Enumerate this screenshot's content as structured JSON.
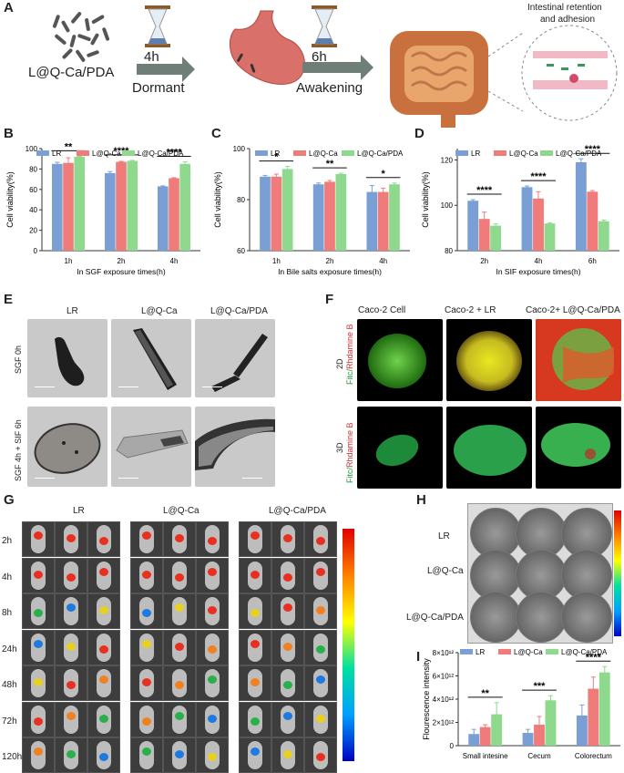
{
  "panels": {
    "A": {
      "letter": "A",
      "bacteria_label": "L@Q-Ca/PDA",
      "step1_time": "4h",
      "step1_label": "Dormant",
      "step2_time": "6h",
      "step2_label": "Awakening",
      "inset_title_line1": "Intestinal retention",
      "inset_title_line2": "and adhesion"
    },
    "B": {
      "letter": "B"
    },
    "C": {
      "letter": "C"
    },
    "D": {
      "letter": "D"
    },
    "E": {
      "letter": "E",
      "col_labels": [
        "LR",
        "L@Q-Ca",
        "L@Q-Ca/PDA"
      ],
      "row_labels": [
        "SGF 0h",
        "SGF 4h + SIF 6h"
      ]
    },
    "F": {
      "letter": "F",
      "col_labels": [
        "Caco-2 Cell",
        "Caco-2 + LR",
        "Caco-2+ L@Q-Ca/PDA"
      ],
      "row_labels": [
        "2D",
        "3D"
      ],
      "side_label_green": "Fitc/",
      "side_label_red": "Rhdamine B"
    },
    "G": {
      "letter": "G",
      "group_labels": [
        "LR",
        "L@Q-Ca",
        "L@Q-Ca/PDA"
      ],
      "time_labels": [
        "2h",
        "4h",
        "8h",
        "24h",
        "48h",
        "72h",
        "120h"
      ]
    },
    "H": {
      "letter": "H",
      "row_labels": [
        "LR",
        "L@Q-Ca",
        "L@Q-Ca/PDA"
      ]
    },
    "I": {
      "letter": "I"
    }
  },
  "colors": {
    "LR": "#7a9fd4",
    "LQCa": "#f07b7b",
    "LQCaPDA": "#8fd98f"
  },
  "chart_data": [
    {
      "id": "B",
      "type": "bar",
      "categories": [
        "1h",
        "2h",
        "4h"
      ],
      "series": [
        {
          "name": "LR",
          "values": [
            85,
            76,
            63
          ]
        },
        {
          "name": "L@Q-Ca",
          "values": [
            86,
            87,
            71
          ]
        },
        {
          "name": "L@Q-Ca/PDA",
          "values": [
            92,
            88,
            85
          ]
        }
      ],
      "errors": [
        [
          1.5,
          1.5,
          0.5
        ],
        [
          5,
          0.5,
          0.5
        ],
        [
          0.5,
          0.5,
          2
        ]
      ],
      "xlabel": "In SGF exposure times(h)",
      "ylabel": "Cell viability(%)",
      "ylim": [
        0,
        100
      ],
      "yticks": [
        0,
        20,
        40,
        60,
        80,
        100
      ],
      "significance": [
        "**",
        "****",
        "****"
      ]
    },
    {
      "id": "C",
      "type": "bar",
      "categories": [
        "1h",
        "2h",
        "4h"
      ],
      "series": [
        {
          "name": "LR",
          "values": [
            89,
            86,
            83
          ]
        },
        {
          "name": "L@Q-Ca",
          "values": [
            89,
            87,
            83
          ]
        },
        {
          "name": "L@Q-Ca/PDA",
          "values": [
            92,
            90,
            86
          ]
        }
      ],
      "errors": [
        [
          0.5,
          0.5,
          2.5
        ],
        [
          1,
          0.5,
          1.5
        ],
        [
          1,
          0.3,
          0.5
        ]
      ],
      "xlabel": "In Bile salts exposure times(h)",
      "ylabel": "Cell viability(%)",
      "ylim": [
        60,
        100
      ],
      "yticks": [
        60,
        80,
        100
      ],
      "significance": [
        "*",
        "**",
        "*"
      ]
    },
    {
      "id": "D",
      "type": "bar",
      "categories": [
        "2h",
        "4h",
        "6h"
      ],
      "series": [
        {
          "name": "LR",
          "values": [
            102,
            108,
            119
          ]
        },
        {
          "name": "L@Q-Ca",
          "values": [
            94,
            103,
            106
          ]
        },
        {
          "name": "L@Q-Ca/PDA",
          "values": [
            91,
            92,
            93
          ]
        }
      ],
      "errors": [
        [
          0.5,
          0.5,
          1.5
        ],
        [
          3,
          3,
          0.5
        ],
        [
          0.8,
          0.3,
          0.5
        ]
      ],
      "xlabel": "In SIF exposure times(h)",
      "ylabel": "Cell viability(%)",
      "ylim": [
        80,
        125
      ],
      "yticks": [
        80,
        100,
        120
      ],
      "significance": [
        "****",
        "****",
        "****"
      ]
    },
    {
      "id": "I",
      "type": "bar",
      "categories": [
        "Small intesine",
        "Cecum",
        "Colorectum"
      ],
      "series": [
        {
          "name": "LR",
          "values": [
            1.0,
            1.1,
            2.6
          ]
        },
        {
          "name": "L@Q-Ca",
          "values": [
            1.6,
            1.8,
            4.9
          ]
        },
        {
          "name": "L@Q-Ca/PDA",
          "values": [
            2.7,
            3.9,
            6.3
          ]
        }
      ],
      "errors": [
        [
          0.4,
          0.3,
          0.9
        ],
        [
          0.2,
          0.7,
          1.0
        ],
        [
          1.0,
          0.4,
          0.5
        ]
      ],
      "ylabel": "Flourescence intensity",
      "ylim": [
        0,
        8
      ],
      "ytick_labels": [
        "0",
        "2×10¹²",
        "4×10¹²",
        "6×10¹²",
        "8×10¹²"
      ],
      "significance": [
        "**",
        "***",
        "****"
      ]
    }
  ]
}
